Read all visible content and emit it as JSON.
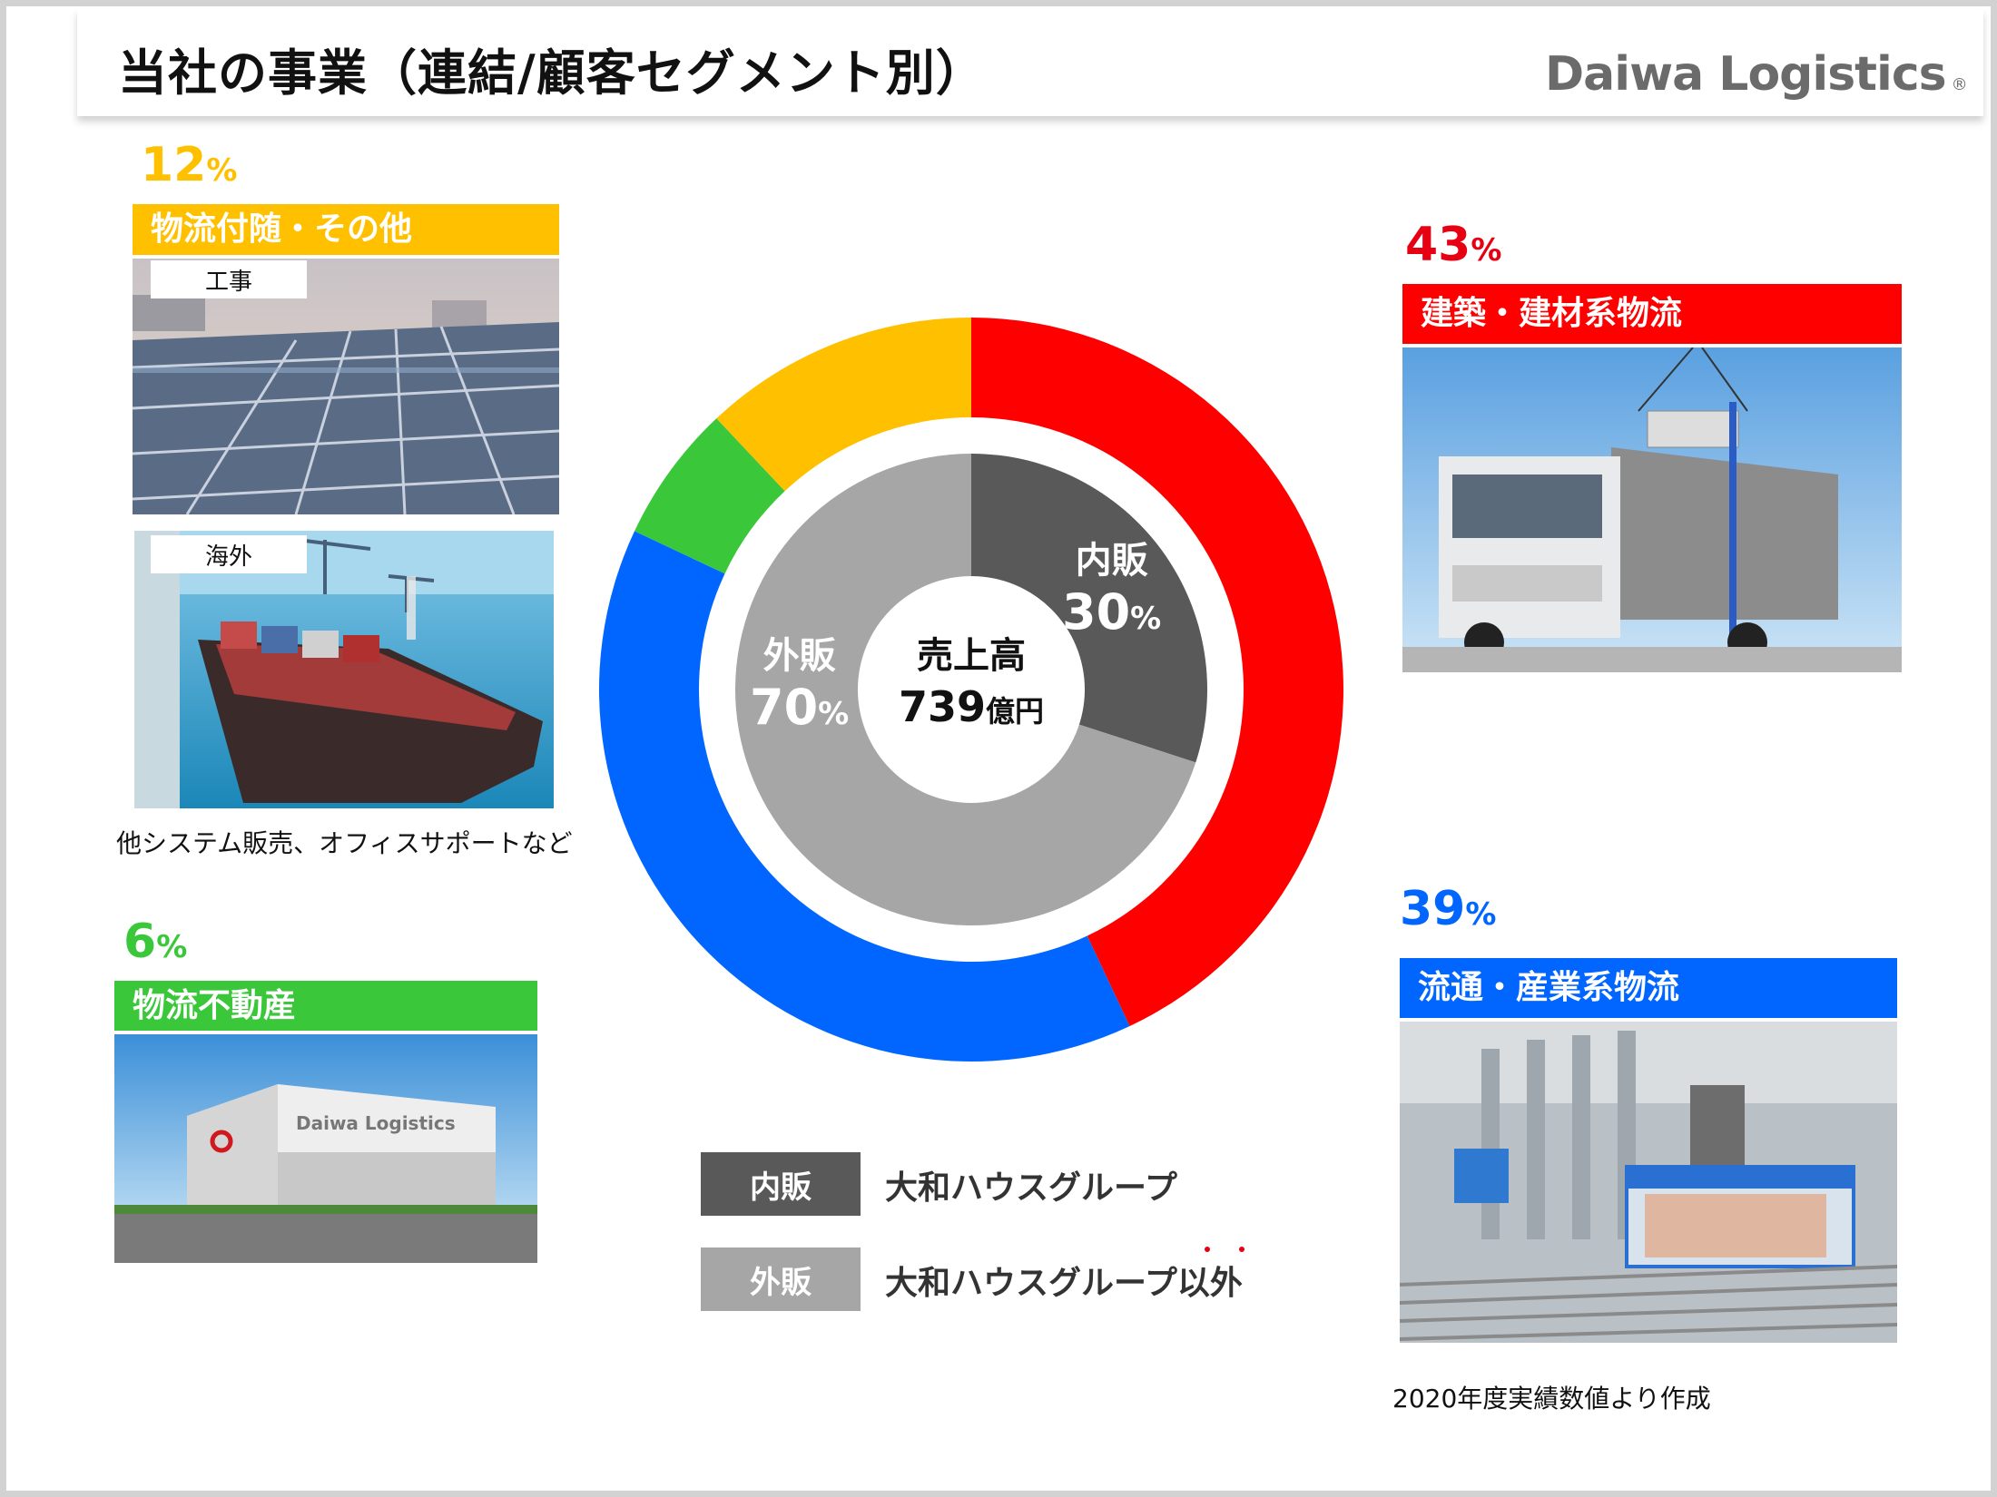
{
  "header": {
    "title": "当社の事業（連結/顧客セグメント別）",
    "logo_text": "Daiwa Logistics",
    "logo_mark": "®"
  },
  "segments": {
    "other": {
      "percent": "12",
      "percent_symbol": "%",
      "label": "物流付随・その他",
      "color": "#ffc000",
      "photo1_tag": "工事",
      "photo2_tag": "海外",
      "caption": "他システム販売、オフィスサポートなど"
    },
    "real_estate": {
      "percent": "6",
      "percent_symbol": "%",
      "label": "物流不動産",
      "color": "#3ac83a"
    },
    "construction": {
      "percent": "43",
      "percent_symbol": "%",
      "label": "建築・建材系物流",
      "color": "#ff0000"
    },
    "distribution": {
      "percent": "39",
      "percent_symbol": "%",
      "label": "流通・産業系物流",
      "color": "#0066ff"
    }
  },
  "center": {
    "label": "売上高",
    "value": "739",
    "unit": "億円"
  },
  "inner": {
    "internal": {
      "label": "内販",
      "percent": "30",
      "symbol": "%"
    },
    "external": {
      "label": "外販",
      "percent": "70",
      "symbol": "%"
    }
  },
  "legend": {
    "internal": {
      "box": "内販",
      "text": "大和ハウスグループ",
      "color": "#595959"
    },
    "external": {
      "box": "外販",
      "text_main": "大和ハウスグループ",
      "text_emph": "以外",
      "color": "#a6a6a6"
    }
  },
  "footnote": "2020年度実績数値より作成",
  "chart_data": [
    {
      "type": "pie",
      "categories": [
        "建築・建材系物流",
        "流通・産業系物流",
        "物流不動産",
        "物流付随・その他"
      ],
      "values": [
        43,
        39,
        6,
        12
      ],
      "colors": [
        "#ff0000",
        "#0066ff",
        "#3ac83a",
        "#ffc000"
      ]
    },
    {
      "type": "pie",
      "categories": [
        "内販",
        "外販"
      ],
      "values": [
        30,
        70
      ],
      "colors": [
        "#595959",
        "#a6a6a6"
      ]
    }
  ]
}
